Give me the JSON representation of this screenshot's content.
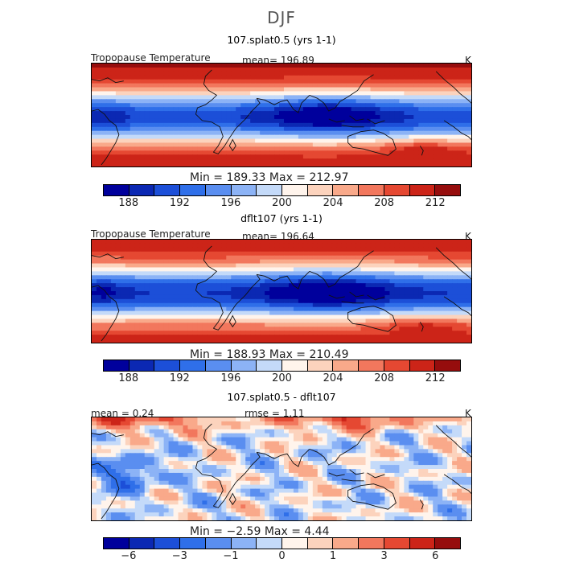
{
  "figure_title": "DJF",
  "colors": {
    "temp_palette": [
      "#00009c",
      "#0b28b3",
      "#1c4fd8",
      "#2f6fe9",
      "#5a8ef0",
      "#8cb3f6",
      "#c4daf9",
      "#fff4ec",
      "#fcd3bd",
      "#f9a98a",
      "#f2775d",
      "#e54832",
      "#cc2418",
      "#960d0d"
    ],
    "diff_palette": [
      "#00009c",
      "#0b28b3",
      "#1c4fd8",
      "#2f6fe9",
      "#5a8ef0",
      "#8cb3f6",
      "#c4daf9",
      "#fff4ec",
      "#fcd3bd",
      "#f9a98a",
      "#f2775d",
      "#e54832",
      "#cc2418",
      "#960d0d"
    ]
  },
  "panels": [
    {
      "title": "107.splat0.5 (yrs 1-1)",
      "left_label": "Tropopause Temperature",
      "center_label": "mean= 196.89",
      "unit": "K",
      "stats": "Min = 189.33 Max = 212.97",
      "ticks": [
        "188",
        "192",
        "196",
        "200",
        "204",
        "208",
        "212"
      ]
    },
    {
      "title": "dflt107 (yrs 1-1)",
      "left_label": "Tropopause Temperature",
      "center_label": "mean= 196.64",
      "unit": "K",
      "stats": "Min = 188.93 Max = 210.49",
      "ticks": [
        "188",
        "192",
        "196",
        "200",
        "204",
        "208",
        "212"
      ]
    },
    {
      "title": "107.splat0.5 - dflt107",
      "left_label": "mean = 0.24",
      "center_label": "rmse = 1.11",
      "unit": "K",
      "stats": "Min = −2.59 Max = 4.44",
      "ticks": [
        "−6",
        "−3",
        "−1",
        "0",
        "1",
        "3",
        "6"
      ]
    }
  ],
  "chart_data": [
    {
      "type": "heatmap",
      "title": "107.splat0.5 (yrs 1-1)",
      "variable": "Tropopause Temperature",
      "units": "K",
      "mean": 196.89,
      "min": 189.33,
      "max": 212.97,
      "colorbar_levels": [
        186,
        188,
        190,
        192,
        194,
        196,
        198,
        200,
        202,
        204,
        206,
        208,
        210,
        212,
        214
      ],
      "colorbar_tick_values": [
        188,
        192,
        196,
        200,
        204,
        208,
        212
      ],
      "pattern": "warm (red) near both poles, cold (blue) tropical band deepest over the Maritime Continent"
    },
    {
      "type": "heatmap",
      "title": "dflt107 (yrs 1-1)",
      "variable": "Tropopause Temperature",
      "units": "K",
      "mean": 196.64,
      "min": 188.93,
      "max": 210.49,
      "colorbar_levels": [
        186,
        188,
        190,
        192,
        194,
        196,
        198,
        200,
        202,
        204,
        206,
        208,
        210,
        212,
        214
      ],
      "colorbar_tick_values": [
        188,
        192,
        196,
        200,
        204,
        208,
        212
      ],
      "pattern": "warm (red) near both poles, cold (blue) tropical band deepest over the Maritime Continent"
    },
    {
      "type": "heatmap",
      "title": "107.splat0.5 - dflt107",
      "variable": "difference",
      "units": "K",
      "mean": 0.24,
      "rmse": 1.11,
      "min": -2.59,
      "max": 4.44,
      "colorbar_levels": [
        -8,
        -6,
        -4,
        -3,
        -2,
        -1,
        -0.5,
        0,
        0.5,
        1,
        2,
        3,
        4,
        6,
        8
      ],
      "colorbar_tick_values": [
        -6,
        -3,
        -1,
        0,
        1,
        3,
        6
      ],
      "pattern": "positive (red) along northern edge, mixed small anomalies elsewhere"
    }
  ]
}
